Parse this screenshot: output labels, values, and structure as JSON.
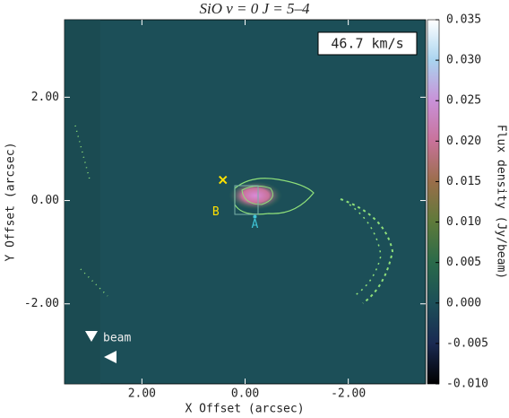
{
  "chart_data": {
    "type": "image",
    "title": "SiO  v = 0  J = 5–4",
    "annotation": "46.7 km/s",
    "x_label": "X Offset (arcsec)",
    "y_label": "Y Offset (arcsec)",
    "colorbar_label": "Flux density (Jy/beam)",
    "beam_label": "beam",
    "xlim": [
      3.5,
      -3.5
    ],
    "ylim": [
      -3.55,
      3.5
    ],
    "xticks": [
      {
        "value": 2,
        "label": "2.00"
      },
      {
        "value": 0,
        "label": "0.00"
      },
      {
        "value": -2,
        "label": "-2.00"
      }
    ],
    "yticks": [
      {
        "value": 2,
        "label": "2.00"
      },
      {
        "value": 0,
        "label": "0.00"
      },
      {
        "value": -2,
        "label": "-2.00"
      }
    ],
    "zlim": [
      -0.01,
      0.035
    ],
    "zticks": [
      {
        "value": 0.035,
        "label": "0.035"
      },
      {
        "value": 0.03,
        "label": "0.030"
      },
      {
        "value": 0.025,
        "label": "0.025"
      },
      {
        "value": 0.02,
        "label": "0.020"
      },
      {
        "value": 0.015,
        "label": "0.015"
      },
      {
        "value": 0.01,
        "label": "0.010"
      },
      {
        "value": 0.005,
        "label": "0.005"
      },
      {
        "value": 0,
        "label": "0.000"
      },
      {
        "value": -0.005,
        "label": "-0.005"
      },
      {
        "value": -0.01,
        "label": "-0.010"
      }
    ],
    "colormap": [
      "#000000",
      "#1a2a52",
      "#1c4f58",
      "#2a6a4a",
      "#5e7a3a",
      "#9a6e4a",
      "#c8729a",
      "#c991d8",
      "#a9d4ef",
      "#ffffff"
    ],
    "markers": [
      {
        "label": "B",
        "x": 0.43,
        "y": 0.4,
        "color": "#ffe000"
      },
      {
        "label": "A",
        "x": -0.19,
        "y": -0.47,
        "color": "#3fc6d8"
      }
    ]
  }
}
